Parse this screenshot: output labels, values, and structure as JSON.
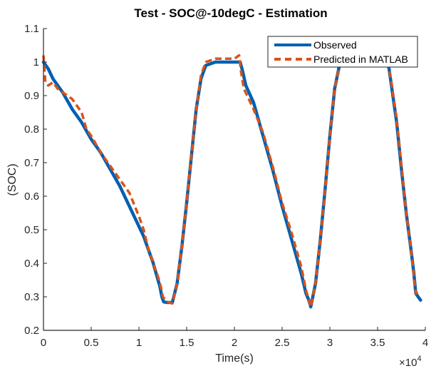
{
  "chart_data": {
    "type": "line",
    "title": "Test - SOC@-10degC - Estimation",
    "xlabel": "Time(s)",
    "ylabel": "(SOC)",
    "x_exponent_label": "×10",
    "x_exponent_power": "4",
    "xlim": [
      0,
      4
    ],
    "ylim": [
      0.2,
      1.1
    ],
    "x_scale_note": "x values in units of 10^4 s",
    "xticks": [
      0,
      0.5,
      1,
      1.5,
      2,
      2.5,
      3,
      3.5,
      4
    ],
    "xtick_labels": [
      "0",
      "0.5",
      "1",
      "1.5",
      "2",
      "2.5",
      "3",
      "3.5",
      "4"
    ],
    "yticks": [
      0.2,
      0.3,
      0.4,
      0.5,
      0.6,
      0.7,
      0.8,
      0.9,
      1.0,
      1.1
    ],
    "ytick_labels": [
      "0.2",
      "0.3",
      "0.4",
      "0.5",
      "0.6",
      "0.7",
      "0.8",
      "0.9",
      "1",
      "1.1"
    ],
    "grid": false,
    "box": false,
    "legend_position": "top-right",
    "series": [
      {
        "name": "Observed",
        "color": "#0060B0",
        "style": "solid",
        "x": [
          0,
          0.05,
          0.1,
          0.2,
          0.3,
          0.4,
          0.5,
          0.6,
          0.7,
          0.8,
          0.9,
          1.0,
          1.05,
          1.1,
          1.15,
          1.18,
          1.22,
          1.24,
          1.26,
          1.3,
          1.35,
          1.4,
          1.45,
          1.5,
          1.55,
          1.6,
          1.65,
          1.7,
          1.8,
          1.9,
          2.0,
          2.06,
          2.08,
          2.12,
          2.2,
          2.3,
          2.4,
          2.5,
          2.6,
          2.7,
          2.75,
          2.78,
          2.8,
          2.85,
          2.9,
          2.95,
          3.0,
          3.05,
          3.1,
          3.15,
          3.2,
          3.3,
          3.4,
          3.5,
          3.55,
          3.6,
          3.62,
          3.65,
          3.7,
          3.75,
          3.8,
          3.85,
          3.88,
          3.9,
          3.95
        ],
        "y": [
          1.0,
          0.98,
          0.95,
          0.91,
          0.86,
          0.82,
          0.77,
          0.73,
          0.68,
          0.63,
          0.57,
          0.51,
          0.48,
          0.44,
          0.4,
          0.37,
          0.33,
          0.3,
          0.285,
          0.283,
          0.283,
          0.34,
          0.45,
          0.58,
          0.72,
          0.86,
          0.95,
          0.99,
          1.0,
          1.0,
          1.0,
          1.0,
          0.98,
          0.93,
          0.88,
          0.78,
          0.68,
          0.57,
          0.47,
          0.37,
          0.31,
          0.29,
          0.27,
          0.34,
          0.47,
          0.62,
          0.78,
          0.92,
          0.99,
          1.0,
          1.0,
          1.0,
          1.0,
          1.0,
          1.0,
          1.0,
          0.98,
          0.92,
          0.82,
          0.68,
          0.55,
          0.44,
          0.37,
          0.31,
          0.29
        ]
      },
      {
        "name": "Predicted in MATLAB",
        "color": "#D95319",
        "style": "dashed",
        "x": [
          0,
          0.02,
          0.05,
          0.1,
          0.15,
          0.2,
          0.3,
          0.4,
          0.45,
          0.5,
          0.6,
          0.7,
          0.8,
          0.9,
          1.0,
          1.05,
          1.1,
          1.15,
          1.2,
          1.23,
          1.25,
          1.3,
          1.35,
          1.4,
          1.45,
          1.5,
          1.55,
          1.6,
          1.65,
          1.7,
          1.8,
          1.9,
          2.0,
          2.05,
          2.07,
          2.1,
          2.2,
          2.3,
          2.4,
          2.5,
          2.6,
          2.7,
          2.75,
          2.78,
          2.8,
          2.85,
          2.9,
          2.95,
          3.0,
          3.05,
          3.1,
          3.15,
          3.2,
          3.3,
          3.4,
          3.5,
          3.55,
          3.6,
          3.62,
          3.65,
          3.7,
          3.75,
          3.8,
          3.85,
          3.88,
          3.9,
          3.95
        ],
        "y": [
          1.02,
          0.94,
          0.93,
          0.94,
          0.92,
          0.91,
          0.89,
          0.85,
          0.8,
          0.78,
          0.73,
          0.69,
          0.65,
          0.61,
          0.54,
          0.5,
          0.44,
          0.4,
          0.36,
          0.33,
          0.3,
          0.285,
          0.28,
          0.34,
          0.45,
          0.58,
          0.72,
          0.86,
          0.96,
          1.0,
          1.01,
          1.01,
          1.01,
          1.02,
          0.97,
          0.92,
          0.86,
          0.79,
          0.69,
          0.58,
          0.49,
          0.39,
          0.32,
          0.29,
          0.27,
          0.34,
          0.47,
          0.62,
          0.78,
          0.92,
          0.99,
          1.0,
          1.0,
          1.0,
          1.0,
          1.0,
          1.0,
          1.0,
          0.98,
          0.93,
          0.83,
          0.69,
          0.55,
          0.44,
          0.36,
          0.31,
          0.32
        ]
      }
    ]
  }
}
